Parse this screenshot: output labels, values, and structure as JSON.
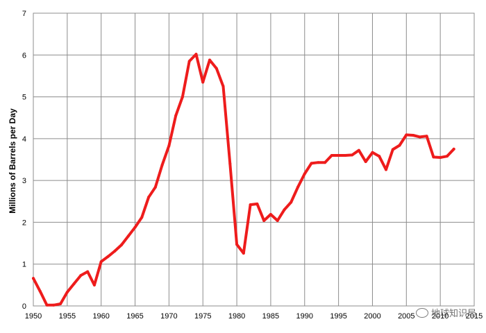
{
  "chart_data": {
    "type": "line",
    "title": "",
    "xlabel": "",
    "ylabel": "Millions of Barrels per Day",
    "xlim": [
      1950,
      2015
    ],
    "ylim": [
      0,
      7
    ],
    "x_ticks": [
      1950,
      1955,
      1960,
      1965,
      1970,
      1975,
      1980,
      1985,
      1990,
      1995,
      2000,
      2005,
      2010,
      2015
    ],
    "y_ticks": [
      0,
      1,
      2,
      3,
      4,
      5,
      6,
      7
    ],
    "grid": true,
    "series": [
      {
        "color": "#ee1c1c",
        "x": [
          1950,
          1951,
          1952,
          1953,
          1954,
          1955,
          1956,
          1957,
          1958,
          1959,
          1960,
          1961,
          1962,
          1963,
          1964,
          1965,
          1966,
          1967,
          1968,
          1969,
          1970,
          1971,
          1972,
          1973,
          1974,
          1975,
          1976,
          1977,
          1978,
          1979,
          1980,
          1981,
          1982,
          1983,
          1984,
          1985,
          1986,
          1987,
          1988,
          1989,
          1990,
          1991,
          1992,
          1993,
          1994,
          1995,
          1996,
          1997,
          1998,
          1999,
          2000,
          2001,
          2002,
          2003,
          2004,
          2005,
          2006,
          2007,
          2008,
          2009,
          2010,
          2011,
          2012
        ],
        "values": [
          0.66,
          0.35,
          0.02,
          0.02,
          0.05,
          0.33,
          0.53,
          0.73,
          0.82,
          0.5,
          1.06,
          1.18,
          1.31,
          1.46,
          1.67,
          1.88,
          2.12,
          2.6,
          2.84,
          3.37,
          3.83,
          4.55,
          5.0,
          5.85,
          6.02,
          5.35,
          5.88,
          5.68,
          5.25,
          3.4,
          1.47,
          1.26,
          2.42,
          2.44,
          2.04,
          2.19,
          2.04,
          2.3,
          2.48,
          2.84,
          3.16,
          3.41,
          3.43,
          3.43,
          3.6,
          3.6,
          3.6,
          3.61,
          3.72,
          3.45,
          3.67,
          3.58,
          3.26,
          3.74,
          3.84,
          4.09,
          4.08,
          4.04,
          4.06,
          3.56,
          3.55,
          3.58,
          3.75
        ]
      }
    ]
  },
  "watermark": {
    "text": "地球知识局"
  }
}
